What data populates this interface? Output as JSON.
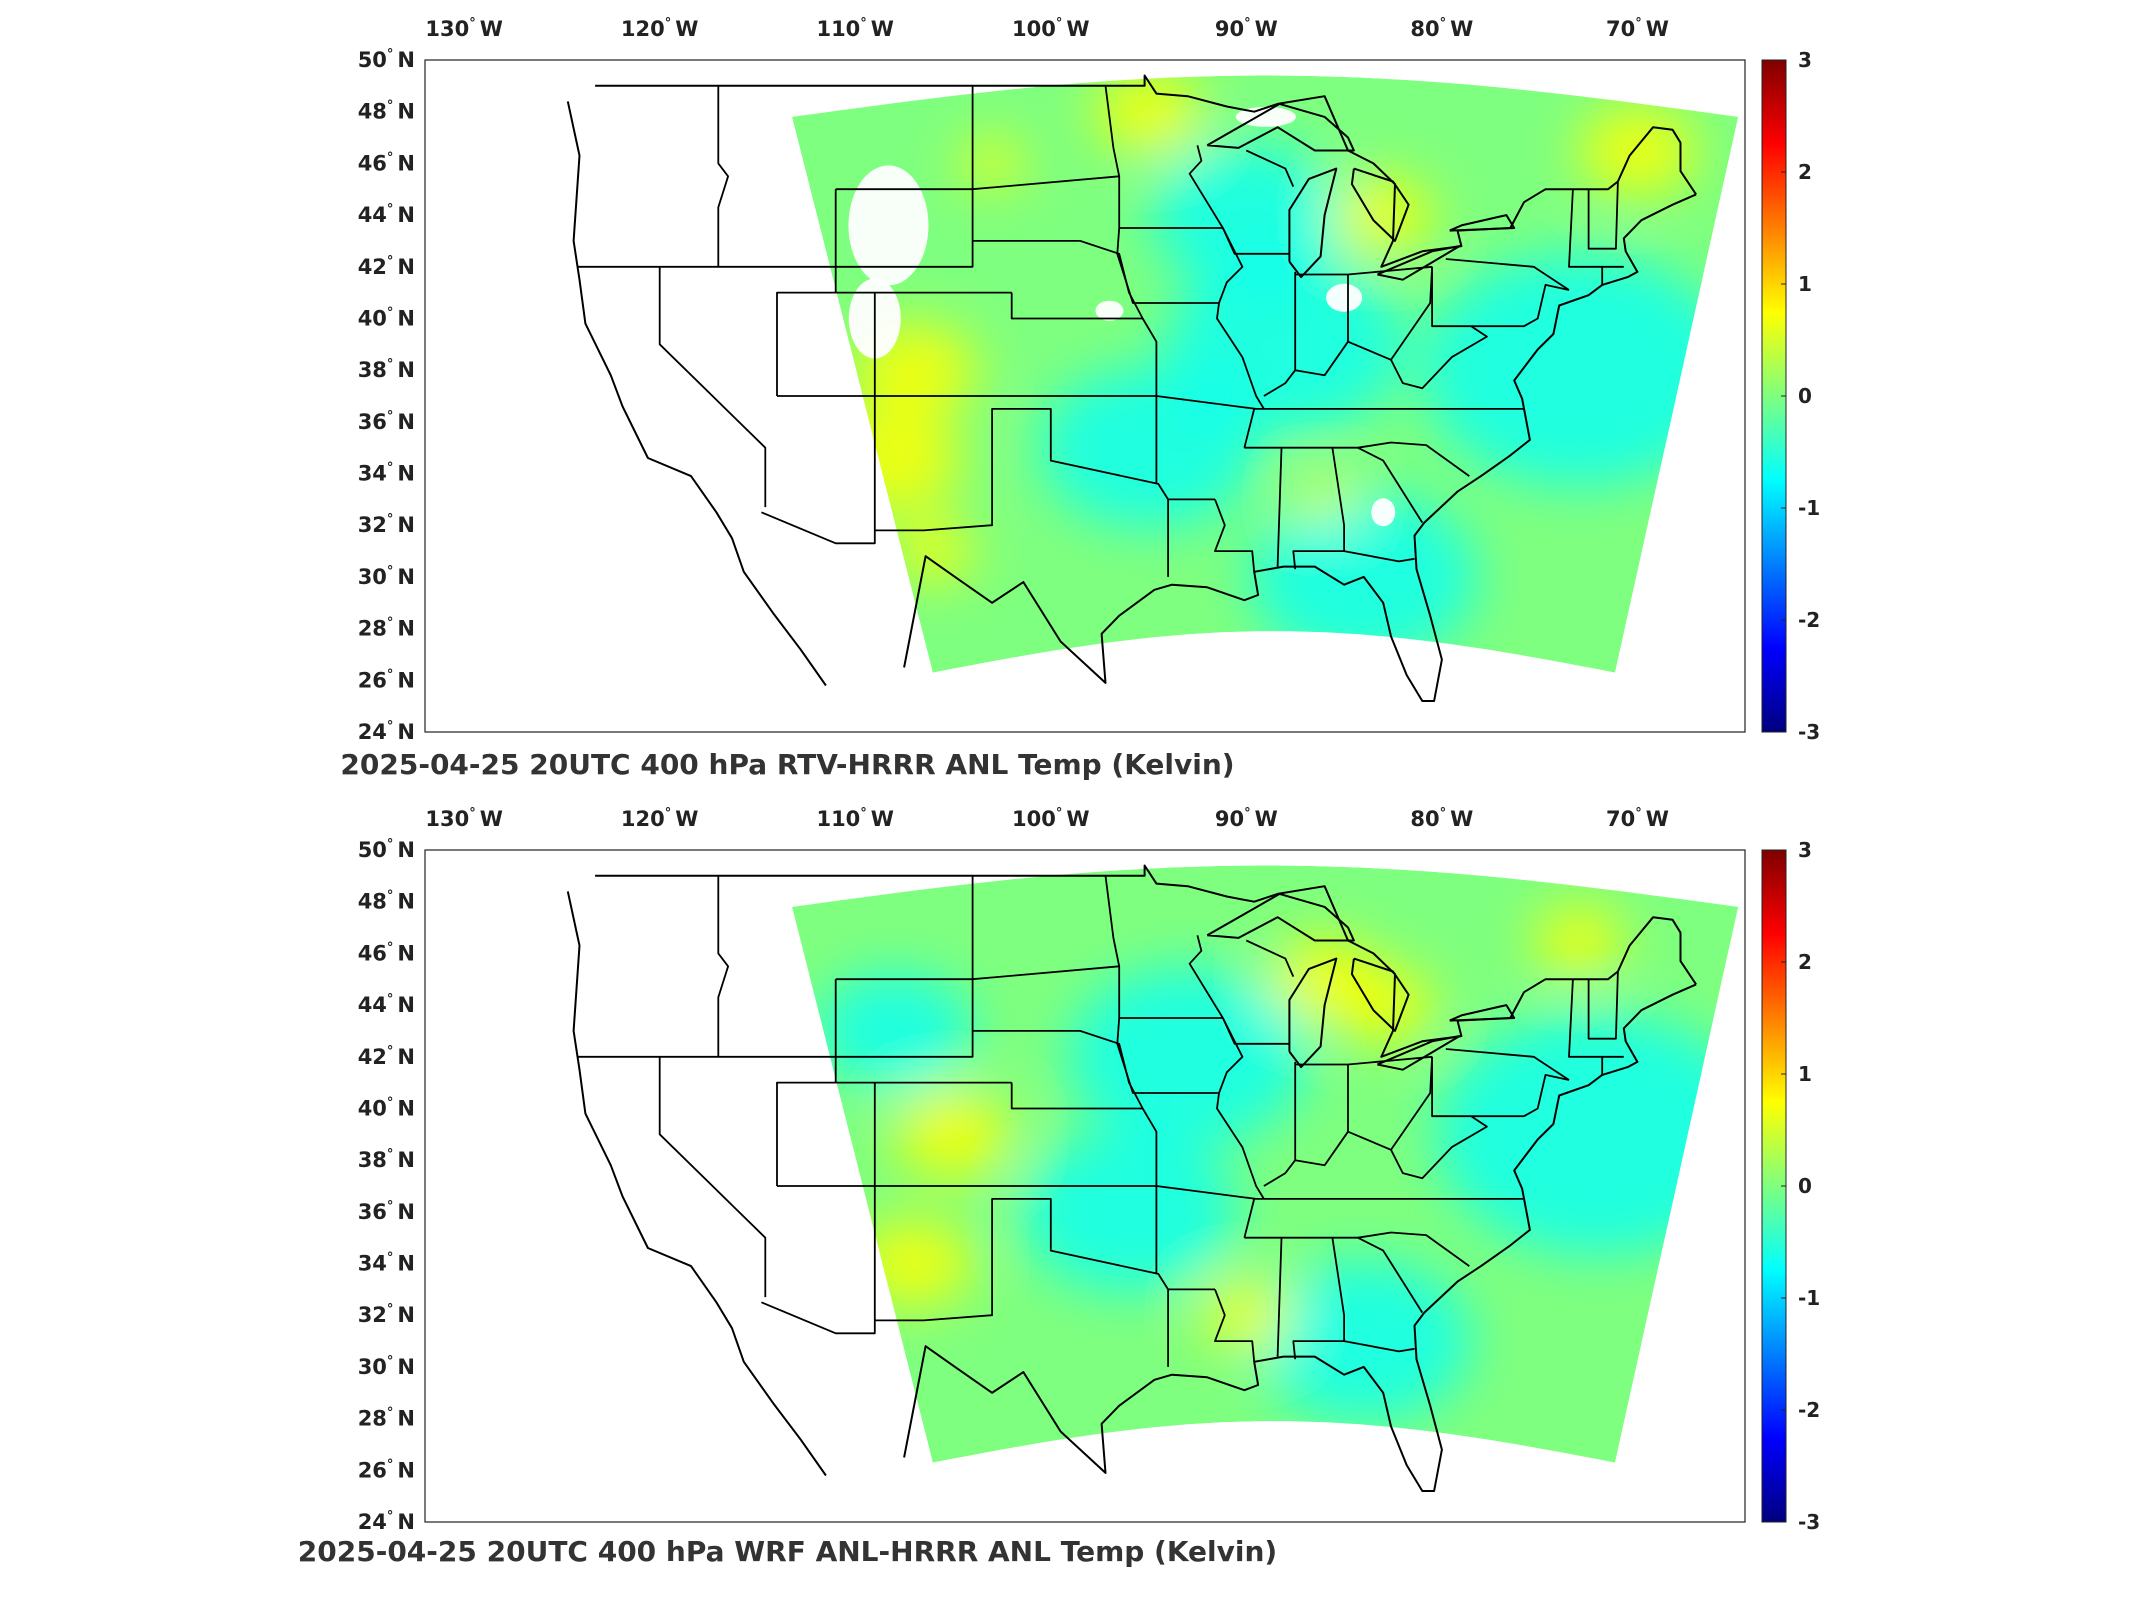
{
  "panels": [
    {
      "title": "2025-04-25 20UTC 400 hPa RTV-HRRR ANL Temp (Kelvin)",
      "variant": "rtv"
    },
    {
      "title": "2025-04-25 20UTC 400 hPa WRF ANL-HRRR ANL Temp (Kelvin)",
      "variant": "wrf"
    }
  ],
  "map": {
    "lon_ticks": [
      {
        "value": -130,
        "label": "130",
        "hemi": "W"
      },
      {
        "value": -120,
        "label": "120",
        "hemi": "W"
      },
      {
        "value": -110,
        "label": "110",
        "hemi": "W"
      },
      {
        "value": -100,
        "label": "100",
        "hemi": "W"
      },
      {
        "value": -90,
        "label": "90",
        "hemi": "W"
      },
      {
        "value": -80,
        "label": "80",
        "hemi": "W"
      },
      {
        "value": -70,
        "label": "70",
        "hemi": "W"
      }
    ],
    "lat_ticks": [
      {
        "value": 50,
        "label": "50",
        "hemi": "N"
      },
      {
        "value": 48,
        "label": "48",
        "hemi": "N"
      },
      {
        "value": 46,
        "label": "46",
        "hemi": "N"
      },
      {
        "value": 44,
        "label": "44",
        "hemi": "N"
      },
      {
        "value": 42,
        "label": "42",
        "hemi": "N"
      },
      {
        "value": 40,
        "label": "40",
        "hemi": "N"
      },
      {
        "value": 38,
        "label": "38",
        "hemi": "N"
      },
      {
        "value": 36,
        "label": "36",
        "hemi": "N"
      },
      {
        "value": 34,
        "label": "34",
        "hemi": "N"
      },
      {
        "value": 32,
        "label": "32",
        "hemi": "N"
      },
      {
        "value": 30,
        "label": "30",
        "hemi": "N"
      },
      {
        "value": 28,
        "label": "28",
        "hemi": "N"
      },
      {
        "value": 26,
        "label": "26",
        "hemi": "N"
      },
      {
        "value": 24,
        "label": "24",
        "hemi": "N"
      }
    ],
    "lon_range": [
      -132,
      -64.5
    ],
    "lat_range": [
      24,
      50
    ]
  },
  "colorbar": {
    "min": -3,
    "max": 3,
    "ticks": [
      "3",
      "2",
      "1",
      "0",
      "-1",
      "-2",
      "-3"
    ],
    "colormap": "jet",
    "colors": [
      "#00007f",
      "#0000ff",
      "#007fff",
      "#00ffff",
      "#7fff7f",
      "#ffff00",
      "#ff7f00",
      "#ff0000",
      "#7f0000"
    ]
  }
}
